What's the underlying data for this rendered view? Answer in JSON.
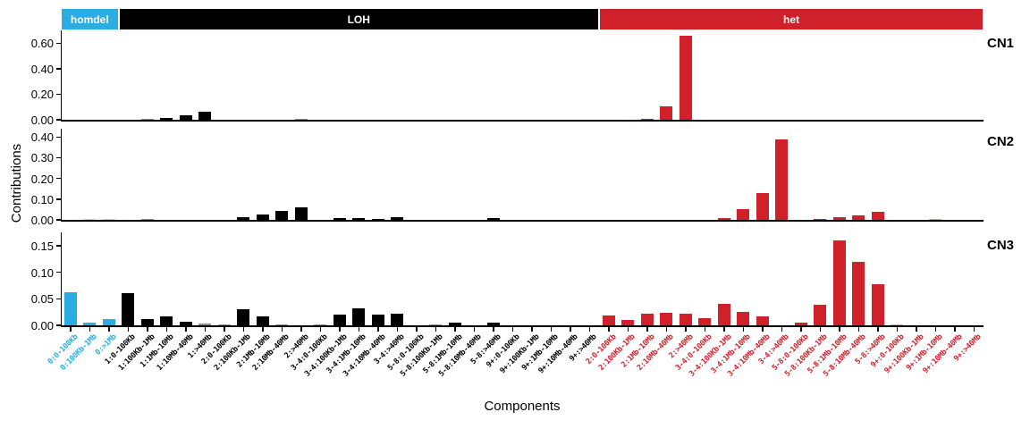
{
  "axis": {
    "y_label": "Contributions",
    "x_label": "Components"
  },
  "colors": {
    "homdel": "#29ade3",
    "LOH": "#000000",
    "het": "#d0202a",
    "text": "#000000",
    "band_text": "#ffffff"
  },
  "chart_data": {
    "type": "bar",
    "title": "",
    "ylabel": "Contributions",
    "xlabel": "Components",
    "legend_position": "top-bands",
    "grid": false,
    "groups": [
      {
        "label": "homdel",
        "color": "#29ade3",
        "count": 3
      },
      {
        "label": "LOH",
        "color": "#000000",
        "count": 25
      },
      {
        "label": "het",
        "color": "#d0202a",
        "count": 20
      }
    ],
    "categories": [
      "0:0-100Kb",
      "0:100Kb-1Mb",
      "0:>1Mb",
      "1:0-100Kb",
      "1:100Kb-1Mb",
      "1:1Mb-10Mb",
      "1:10Mb-40Mb",
      "1:>40Mb",
      "2:0-100Kb",
      "2:100Kb-1Mb",
      "2:1Mb-10Mb",
      "2:10Mb-40Mb",
      "2:>40Mb",
      "3-4:0-100Kb",
      "3-4:100Kb-1Mb",
      "3-4:1Mb-10Mb",
      "3-4:10Mb-40Mb",
      "3-4:>40Mb",
      "5-8:0-100Kb",
      "5-8:100Kb-1Mb",
      "5-8:1Mb-10Mb",
      "5-8:10Mb-40Mb",
      "5-8:>40Mb",
      "9+:0-100Kb",
      "9+:100Kb-1Mb",
      "9+:1Mb-10Mb",
      "9+:10Mb-40Mb",
      "9+:>40Mb",
      "2:0-100Kb",
      "2:100Kb-1Mb",
      "2:1Mb-10Mb",
      "2:10Mb-40Mb",
      "2:>40Mb",
      "3-4:0-100Kb",
      "3-4:100Kb-1Mb",
      "3-4:1Mb-10Mb",
      "3-4:10Mb-40Mb",
      "3-4:>40Mb",
      "5-8:0-100Kb",
      "5-8:100Kb-1Mb",
      "5-8:1Mb-10Mb",
      "5-8:10Mb-40Mb",
      "5-8:>40Mb",
      "9+:0-100Kb",
      "9+:100Kb-1Mb",
      "9+:1Mb-10Mb",
      "9+:10Mb-40Mb",
      "9+:>40Mb"
    ],
    "category_group": [
      "homdel",
      "homdel",
      "homdel",
      "LOH",
      "LOH",
      "LOH",
      "LOH",
      "LOH",
      "LOH",
      "LOH",
      "LOH",
      "LOH",
      "LOH",
      "LOH",
      "LOH",
      "LOH",
      "LOH",
      "LOH",
      "LOH",
      "LOH",
      "LOH",
      "LOH",
      "LOH",
      "LOH",
      "LOH",
      "LOH",
      "LOH",
      "LOH",
      "het",
      "het",
      "het",
      "het",
      "het",
      "het",
      "het",
      "het",
      "het",
      "het",
      "het",
      "het",
      "het",
      "het",
      "het",
      "het",
      "het",
      "het",
      "het",
      "het"
    ],
    "panels": [
      {
        "name": "CN1",
        "yticks": [
          0.0,
          0.2,
          0.4,
          0.6
        ],
        "ylim": [
          0,
          0.7
        ],
        "values": [
          0,
          0,
          0,
          0,
          0.004,
          0.012,
          0.035,
          0.063,
          0,
          0,
          0,
          0,
          0.004,
          0,
          0,
          0,
          0,
          0,
          0,
          0,
          0,
          0,
          0,
          0,
          0,
          0,
          0,
          0,
          0,
          0,
          0.006,
          0.105,
          0.66,
          0,
          0,
          0,
          0,
          0,
          0,
          0,
          0,
          0,
          0,
          0,
          0,
          0,
          0,
          0
        ]
      },
      {
        "name": "CN2",
        "yticks": [
          0.0,
          0.1,
          0.2,
          0.3,
          0.4
        ],
        "ylim": [
          0,
          0.44
        ],
        "values": [
          0,
          0.004,
          0.002,
          0,
          0.003,
          0,
          0,
          0,
          0,
          0.013,
          0.028,
          0.045,
          0.06,
          0,
          0.01,
          0.007,
          0.006,
          0.011,
          0,
          0,
          0,
          0,
          0.007,
          0,
          0,
          0,
          0,
          0,
          0,
          0,
          0,
          0,
          0,
          0,
          0.008,
          0.05,
          0.13,
          0.39,
          0,
          0.005,
          0.015,
          0.02,
          0.038,
          0,
          0,
          0.002,
          0,
          0
        ]
      },
      {
        "name": "CN3",
        "yticks": [
          0.0,
          0.05,
          0.1,
          0.15
        ],
        "ylim": [
          0,
          0.175
        ],
        "values": [
          0.063,
          0.005,
          0.012,
          0.06,
          0.012,
          0.016,
          0.007,
          0.003,
          0.002,
          0.03,
          0.016,
          0.002,
          0,
          0.002,
          0.02,
          0.032,
          0.02,
          0.022,
          0,
          0.002,
          0.005,
          0,
          0.005,
          0,
          0,
          0,
          0,
          0,
          0.018,
          0.01,
          0.022,
          0.024,
          0.022,
          0.014,
          0.04,
          0.026,
          0.016,
          0,
          0.005,
          0.038,
          0.16,
          0.12,
          0.078,
          0.002,
          0,
          0,
          0,
          0
        ]
      }
    ]
  }
}
